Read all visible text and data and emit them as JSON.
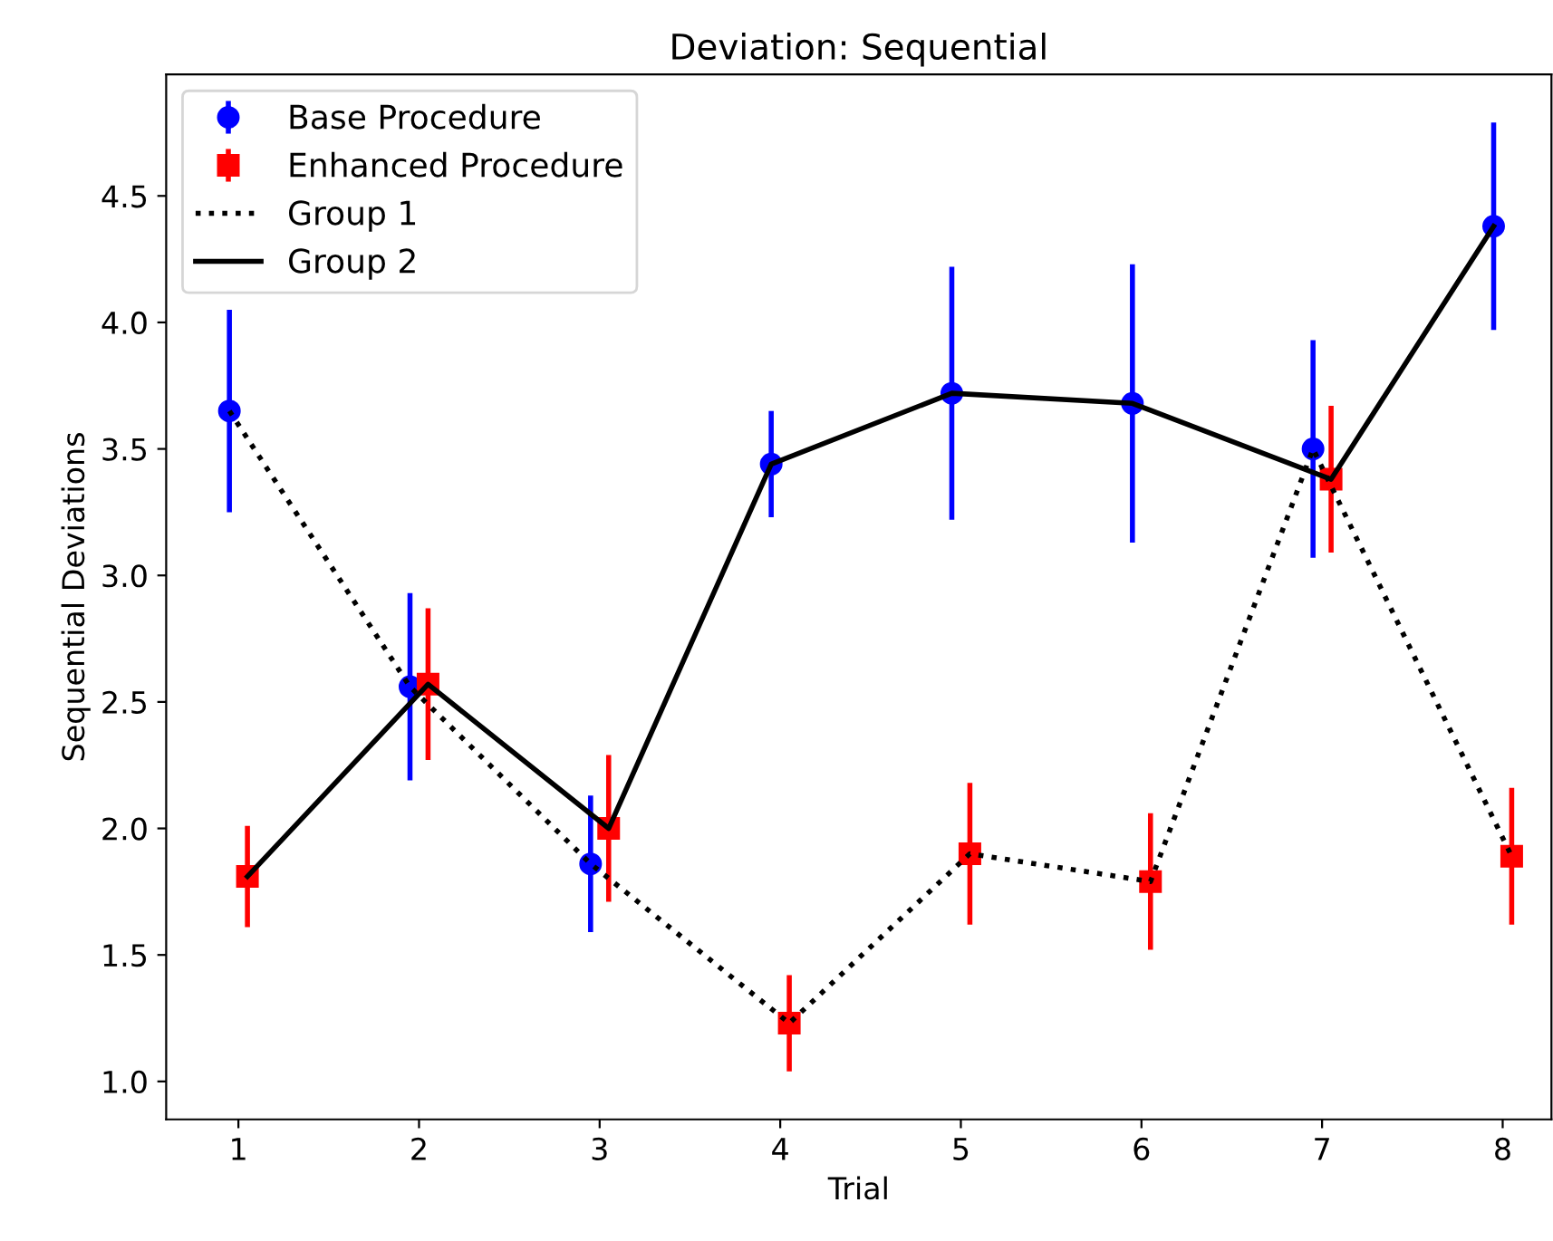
{
  "chart_data": {
    "type": "scatter",
    "title": "Deviation: Sequential",
    "xlabel": "Trial",
    "ylabel": "Sequential Deviations",
    "series": [
      {
        "name": "Base Procedure",
        "color": "#0000ff",
        "marker": "circle",
        "x": [
          0.95,
          1.95,
          2.95,
          3.95,
          4.95,
          5.95,
          6.95,
          7.95
        ],
        "values": [
          3.65,
          2.56,
          1.86,
          3.44,
          3.72,
          3.68,
          3.5,
          4.38
        ],
        "errors": [
          0.4,
          0.37,
          0.27,
          0.21,
          0.5,
          0.55,
          0.43,
          0.41
        ]
      },
      {
        "name": "Enhanced Procedure",
        "color": "#ff0000",
        "marker": "square",
        "x": [
          1.05,
          2.05,
          3.05,
          4.05,
          5.05,
          6.05,
          7.05,
          8.05
        ],
        "values": [
          1.81,
          2.57,
          2.0,
          1.23,
          1.9,
          1.79,
          3.38,
          1.89
        ],
        "errors": [
          0.2,
          0.3,
          0.29,
          0.19,
          0.28,
          0.27,
          0.29,
          0.27
        ]
      },
      {
        "name": "Group 1",
        "type": "line",
        "color": "#000000",
        "line_style": "dotted",
        "x": [
          0.95,
          1.95,
          2.95,
          4.05,
          5.05,
          6.05,
          6.95,
          8.05
        ],
        "values": [
          3.65,
          2.56,
          1.86,
          1.23,
          1.9,
          1.79,
          3.5,
          1.89
        ]
      },
      {
        "name": "Group 2",
        "type": "line",
        "color": "#000000",
        "line_style": "solid",
        "x": [
          1.05,
          2.05,
          3.05,
          3.95,
          4.95,
          5.95,
          7.05,
          7.95
        ],
        "values": [
          1.81,
          2.57,
          2.0,
          3.44,
          3.72,
          3.68,
          3.38,
          4.38
        ]
      }
    ],
    "xlim": [
      0.6,
      8.27
    ],
    "xticks": [
      1,
      2,
      3,
      4,
      5,
      6,
      7,
      8
    ],
    "ylim": [
      0.85,
      4.98
    ],
    "yticks": [
      {
        "value": 1,
        "label": "1.0"
      },
      1.5,
      {
        "value": 2,
        "label": "2.0"
      },
      2.5,
      {
        "value": 3,
        "label": "3.0"
      },
      3.5,
      {
        "value": 4,
        "label": "4.0"
      },
      4.5
    ],
    "grid": false,
    "legend": "top left"
  }
}
